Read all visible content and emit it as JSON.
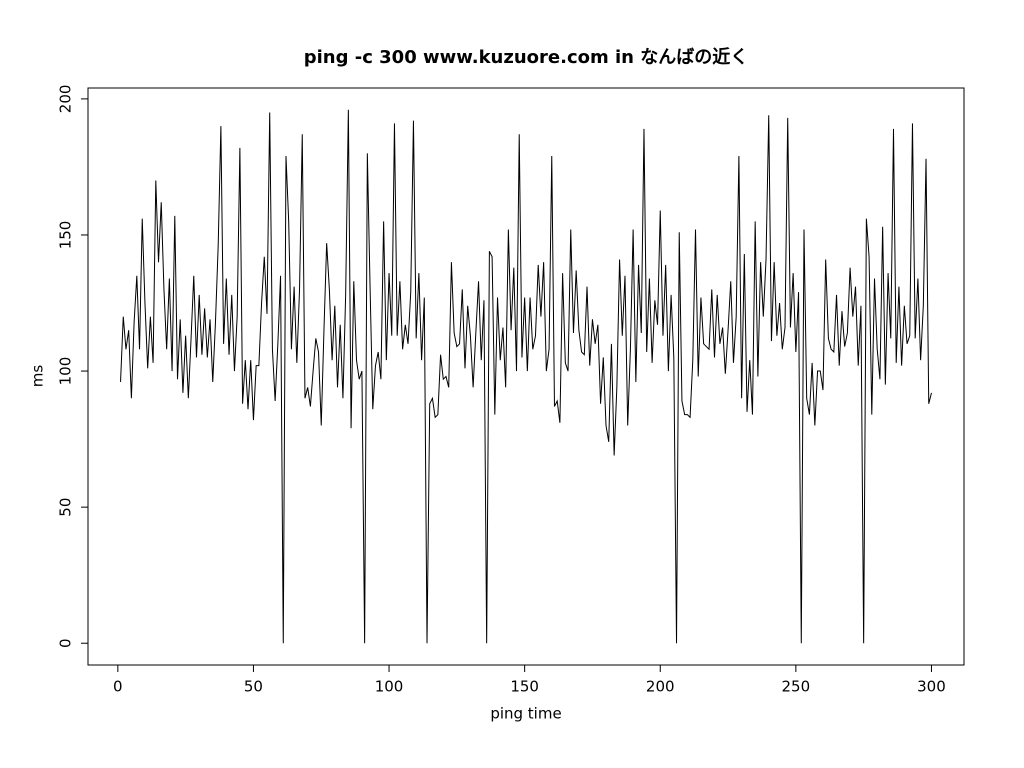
{
  "chart_data": {
    "type": "line",
    "title": "ping -c 300 www.kuzuore.com in なんばの近く",
    "x_label": "ping time",
    "y_label": "ms",
    "xlim": [
      -11,
      312
    ],
    "ylim": [
      -8,
      204
    ],
    "xticks": [
      0,
      50,
      100,
      150,
      200,
      250,
      300
    ],
    "yticks": [
      0,
      50,
      100,
      150,
      200
    ],
    "x": [
      1,
      2,
      3,
      4,
      5,
      6,
      7,
      8,
      9,
      10,
      11,
      12,
      13,
      14,
      15,
      16,
      17,
      18,
      19,
      20,
      21,
      22,
      23,
      24,
      25,
      26,
      27,
      28,
      29,
      30,
      31,
      32,
      33,
      34,
      35,
      36,
      37,
      38,
      39,
      40,
      41,
      42,
      43,
      44,
      45,
      46,
      47,
      48,
      49,
      50,
      51,
      52,
      53,
      54,
      55,
      56,
      57,
      58,
      59,
      60,
      61,
      62,
      63,
      64,
      65,
      66,
      67,
      68,
      69,
      70,
      71,
      72,
      73,
      74,
      75,
      76,
      77,
      78,
      79,
      80,
      81,
      82,
      83,
      84,
      85,
      86,
      87,
      88,
      89,
      90,
      91,
      92,
      93,
      94,
      95,
      96,
      97,
      98,
      99,
      100,
      101,
      102,
      103,
      104,
      105,
      106,
      107,
      108,
      109,
      110,
      111,
      112,
      113,
      114,
      115,
      116,
      117,
      118,
      119,
      120,
      121,
      122,
      123,
      124,
      125,
      126,
      127,
      128,
      129,
      130,
      131,
      132,
      133,
      134,
      135,
      136,
      137,
      138,
      139,
      140,
      141,
      142,
      143,
      144,
      145,
      146,
      147,
      148,
      149,
      150,
      151,
      152,
      153,
      154,
      155,
      156,
      157,
      158,
      159,
      160,
      161,
      162,
      163,
      164,
      165,
      166,
      167,
      168,
      169,
      170,
      171,
      172,
      173,
      174,
      175,
      176,
      177,
      178,
      179,
      180,
      181,
      182,
      183,
      184,
      185,
      186,
      187,
      188,
      189,
      190,
      191,
      192,
      193,
      194,
      195,
      196,
      197,
      198,
      199,
      200,
      201,
      202,
      203,
      204,
      205,
      206,
      207,
      208,
      209,
      210,
      211,
      212,
      213,
      214,
      215,
      216,
      217,
      218,
      219,
      220,
      221,
      222,
      223,
      224,
      225,
      226,
      227,
      228,
      229,
      230,
      231,
      232,
      233,
      234,
      235,
      236,
      237,
      238,
      239,
      240,
      241,
      242,
      243,
      244,
      245,
      246,
      247,
      248,
      249,
      250,
      251,
      252,
      253,
      254,
      255,
      256,
      257,
      258,
      259,
      260,
      261,
      262,
      263,
      264,
      265,
      266,
      267,
      268,
      269,
      270,
      271,
      272,
      273,
      274,
      275,
      276,
      277,
      278,
      279,
      280,
      281,
      282,
      283,
      284,
      285,
      286,
      287,
      288,
      289,
      290,
      291,
      292,
      293,
      294,
      295,
      296,
      297,
      298,
      299,
      300
    ],
    "series": [
      {
        "color": "#000000",
        "values": [
          96,
          120,
          108,
          115,
          90,
          118,
          135,
          108,
          156,
          125,
          101,
          120,
          103,
          170,
          140,
          162,
          130,
          108,
          134,
          100,
          157,
          97,
          119,
          92,
          113,
          90,
          112,
          135,
          105,
          128,
          106,
          123,
          105,
          119,
          96,
          118,
          146,
          190,
          110,
          134,
          106,
          128,
          100,
          120,
          182,
          88,
          104,
          86,
          104,
          82,
          102,
          102,
          125,
          142,
          121,
          195,
          108,
          89,
          110,
          135,
          0,
          179,
          155,
          108,
          131,
          103,
          130,
          187,
          90,
          94,
          87,
          100,
          112,
          107,
          80,
          115,
          147,
          130,
          104,
          124,
          94,
          117,
          90,
          128,
          196,
          79,
          133,
          104,
          97,
          100,
          0,
          180,
          131,
          86,
          102,
          107,
          97,
          155,
          104,
          136,
          113,
          191,
          113,
          133,
          108,
          117,
          110,
          129,
          192,
          112,
          136,
          104,
          127,
          0,
          88,
          90,
          83,
          84,
          106,
          97,
          98,
          94,
          140,
          114,
          109,
          110,
          130,
          101,
          124,
          113,
          94,
          114,
          133,
          104,
          126,
          0,
          144,
          142,
          84,
          127,
          104,
          116,
          94,
          152,
          115,
          138,
          100,
          187,
          105,
          127,
          100,
          127,
          108,
          113,
          139,
          120,
          140,
          100,
          108,
          179,
          87,
          89,
          81,
          136,
          103,
          100,
          152,
          114,
          137,
          115,
          107,
          106,
          131,
          102,
          119,
          110,
          117,
          88,
          105,
          80,
          74,
          110,
          69,
          94,
          141,
          113,
          135,
          80,
          108,
          152,
          96,
          139,
          114,
          189,
          107,
          134,
          103,
          126,
          117,
          159,
          113,
          139,
          100,
          128,
          105,
          0,
          151,
          89,
          84,
          84,
          83,
          104,
          152,
          98,
          127,
          110,
          109,
          108,
          130,
          105,
          128,
          110,
          116,
          99,
          115,
          133,
          103,
          120,
          179,
          90,
          143,
          85,
          104,
          84,
          155,
          98,
          140,
          120,
          141,
          194,
          111,
          140,
          113,
          125,
          108,
          116,
          193,
          116,
          136,
          107,
          129,
          0,
          152,
          90,
          84,
          103,
          80,
          100,
          100,
          93,
          141,
          112,
          108,
          107,
          128,
          102,
          122,
          109,
          114,
          138,
          120,
          131,
          102,
          124,
          0,
          156,
          142,
          84,
          134,
          108,
          97,
          153,
          95,
          136,
          112,
          189,
          103,
          131,
          102,
          124,
          110,
          113,
          191,
          112,
          134,
          104,
          124,
          178,
          88,
          92
        ]
      }
    ]
  }
}
